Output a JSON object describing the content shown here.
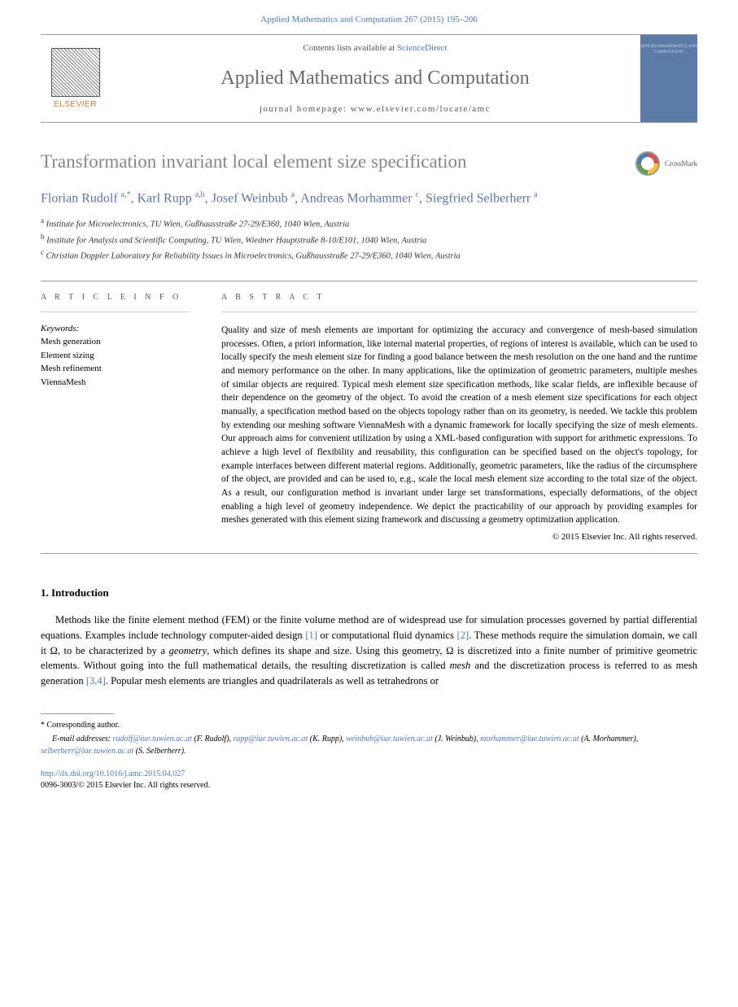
{
  "citation": "Applied Mathematics and Computation 267 (2015) 195–206",
  "header": {
    "contents_prefix": "Contents lists available at ",
    "contents_link": "ScienceDirect",
    "journal_name": "Applied Mathematics and Computation",
    "homepage_prefix": "journal homepage: ",
    "homepage_url": "www.elsevier.com/locate/amc",
    "publisher": "ELSEVIER",
    "cover_text": "APPLIED MATHEMATICS AND COMPUTATION"
  },
  "title": "Transformation invariant local element size specification",
  "crossmark_label": "CrossMark",
  "authors_html": "Florian Rudolf <sup>a,*</sup>, Karl Rupp <sup>a,b</sup>, Josef Weinbub <sup>a</sup>, Andreas Morhammer <sup>c</sup>, Siegfried Selberherr <sup>a</sup>",
  "affiliations": [
    "<sup>a</sup> Institute for Microelectronics, TU Wien, Gußhausstraße 27-29/E360, 1040 Wien, Austria",
    "<sup>b</sup> Institute for Analysis and Scientific Computing, TU Wien, Wiedner Hauptstraße 8-10/E101, 1040 Wien, Austria",
    "<sup>c</sup> Christian Doppler Laboratory for Reliability Issues in Microelectronics, Gußhausstraße 27-29/E360, 1040 Wien, Austria"
  ],
  "info": {
    "heading": "A R T I C L E   I N F O",
    "keywords_label": "Keywords:",
    "keywords": [
      "Mesh generation",
      "Element sizing",
      "Mesh refinement",
      "ViennaMesh"
    ]
  },
  "abstract": {
    "heading": "A B S T R A C T",
    "text": "Quality and size of mesh elements are important for optimizing the accuracy and convergence of mesh-based simulation processes. Often, a priori information, like internal material properties, of regions of interest is available, which can be used to locally specify the mesh element size for finding a good balance between the mesh resolution on the one hand and the runtime and memory performance on the other. In many applications, like the optimization of geometric parameters, multiple meshes of similar objects are required. Typical mesh element size specification methods, like scalar fields, are inflexible because of their dependence on the geometry of the object. To avoid the creation of a mesh element size specifications for each object manually, a specification method based on the objects topology rather than on its geometry, is needed. We tackle this problem by extending our meshing software ViennaMesh with a dynamic framework for locally specifying the size of mesh elements. Our approach aims for convenient utilization by using a XML-based configuration with support for arithmetic expressions. To achieve a high level of flexibility and reusability, this configuration can be specified based on the object's topology, for example interfaces between different material regions. Additionally, geometric parameters, like the radius of the circumsphere of the object, are provided and can be used to, e.g., scale the local mesh element size according to the total size of the object. As a result, our configuration method is invariant under large set transformations, especially deformations, of the object enabling a high level of geometry independence. We depict the practicability of our approach by providing examples for meshes generated with this element sizing framework and discussing a geometry optimization application.",
    "copyright": "© 2015 Elsevier Inc. All rights reserved."
  },
  "intro": {
    "heading": "1. Introduction",
    "paragraph_html": "Methods like the finite element method (FEM) or the finite volume method are of widespread use for simulation processes governed by partial differential equations. Examples include technology computer-aided design <a>[1]</a> or computational fluid dynamics <a>[2]</a>. These methods require the simulation domain, we call it Ω, to be characterized by a <i>geometry</i>, which defines its shape and size. Using this geometry, Ω is discretized into a finite number of primitive geometric elements. Without going into the full mathematical details, the resulting discretization is called <i>mesh</i> and the discretization process is referred to as mesh generation <a>[3,4]</a>. Popular mesh elements are triangles and quadrilaterals as well as tetrahedrons or"
  },
  "footer": {
    "corresponding": "* Corresponding author.",
    "emails_label": "E-mail addresses:",
    "emails_html": "<a>rudolf@iue.tuwien.ac.at</a> (F. Rudolf), <a>rupp@iue.tuwien.ac.at</a> (K. Rupp), <a>weinbub@iue.tuwien.ac.at</a> (J. Weinbub), <a>morhammer@iue.tuwien.ac.at</a> (A. Morhammer), <a>selberherr@iue.tuwien.ac.at</a> (S. Selberherr).",
    "doi": "http://dx.doi.org/10.1016/j.amc.2015.04.027",
    "issn_line": "0096-3003/© 2015 Elsevier Inc. All rights reserved."
  },
  "colors": {
    "link": "#4a7ab8",
    "orange": "#e87722",
    "title_gray": "#868686",
    "author_blue": "#5976ac"
  }
}
